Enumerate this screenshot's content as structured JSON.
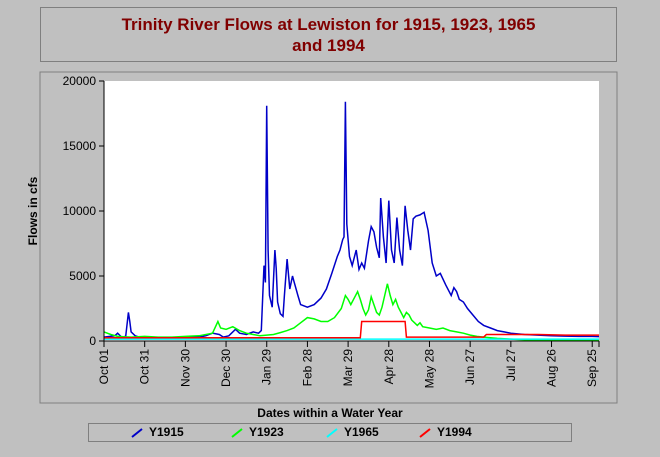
{
  "chart_data": {
    "type": "line",
    "title_line1": "Trinity River Flows at Lewiston for 1915, 1923, 1965",
    "title_line2": "and 1994",
    "xlabel": "Dates within a Water Year",
    "ylabel": "Flows in cfs",
    "ylim": [
      0,
      20000
    ],
    "yticks": [
      0,
      5000,
      10000,
      15000,
      20000
    ],
    "xlim": [
      0,
      365
    ],
    "xticks": [
      {
        "day": 0,
        "label": "Oct 01"
      },
      {
        "day": 30,
        "label": "Oct 31"
      },
      {
        "day": 60,
        "label": "Nov 30"
      },
      {
        "day": 90,
        "label": "Dec 30"
      },
      {
        "day": 120,
        "label": "Jan 29"
      },
      {
        "day": 150,
        "label": "Feb 28"
      },
      {
        "day": 180,
        "label": "Mar 29"
      },
      {
        "day": 210,
        "label": "Apr 28"
      },
      {
        "day": 240,
        "label": "May 28"
      },
      {
        "day": 270,
        "label": "Jun 27"
      },
      {
        "day": 300,
        "label": "Jul 27"
      },
      {
        "day": 330,
        "label": "Aug 26"
      },
      {
        "day": 360,
        "label": "Sep 25"
      }
    ],
    "grid": false,
    "legend_position": "bottom",
    "series": [
      {
        "name": "Y1915",
        "color": "#0000c8",
        "points": [
          [
            0,
            300
          ],
          [
            8,
            400
          ],
          [
            10,
            600
          ],
          [
            13,
            300
          ],
          [
            16,
            350
          ],
          [
            18,
            2200
          ],
          [
            19,
            1500
          ],
          [
            20,
            700
          ],
          [
            23,
            400
          ],
          [
            26,
            300
          ],
          [
            30,
            250
          ],
          [
            33,
            250
          ],
          [
            40,
            200
          ],
          [
            50,
            250
          ],
          [
            60,
            300
          ],
          [
            70,
            300
          ],
          [
            75,
            400
          ],
          [
            80,
            600
          ],
          [
            85,
            500
          ],
          [
            88,
            300
          ],
          [
            92,
            400
          ],
          [
            97,
            900
          ],
          [
            100,
            600
          ],
          [
            105,
            500
          ],
          [
            110,
            700
          ],
          [
            114,
            600
          ],
          [
            116,
            800
          ],
          [
            118,
            5800
          ],
          [
            119,
            4500
          ],
          [
            120,
            18100
          ],
          [
            121,
            7000
          ],
          [
            122,
            3500
          ],
          [
            124,
            2600
          ],
          [
            126,
            7000
          ],
          [
            127,
            5600
          ],
          [
            128,
            3000
          ],
          [
            130,
            2100
          ],
          [
            132,
            1900
          ],
          [
            133,
            3500
          ],
          [
            135,
            6300
          ],
          [
            137,
            4000
          ],
          [
            139,
            5000
          ],
          [
            140,
            4600
          ],
          [
            143,
            3500
          ],
          [
            145,
            2800
          ],
          [
            150,
            2600
          ],
          [
            155,
            2800
          ],
          [
            160,
            3300
          ],
          [
            164,
            4000
          ],
          [
            168,
            5200
          ],
          [
            172,
            6500
          ],
          [
            174,
            7000
          ],
          [
            176,
            7800
          ],
          [
            177,
            8000
          ],
          [
            178,
            18400
          ],
          [
            179,
            9000
          ],
          [
            181,
            6500
          ],
          [
            183,
            5800
          ],
          [
            186,
            7000
          ],
          [
            188,
            5500
          ],
          [
            190,
            6000
          ],
          [
            192,
            5600
          ],
          [
            195,
            7700
          ],
          [
            197,
            8800
          ],
          [
            199,
            8400
          ],
          [
            201,
            7200
          ],
          [
            203,
            6400
          ],
          [
            204,
            11000
          ],
          [
            206,
            8000
          ],
          [
            208,
            6000
          ],
          [
            210,
            10800
          ],
          [
            212,
            7000
          ],
          [
            214,
            6000
          ],
          [
            216,
            9500
          ],
          [
            218,
            7000
          ],
          [
            220,
            5800
          ],
          [
            222,
            10400
          ],
          [
            224,
            8500
          ],
          [
            226,
            7000
          ],
          [
            228,
            9400
          ],
          [
            230,
            9600
          ],
          [
            233,
            9700
          ],
          [
            236,
            9900
          ],
          [
            239,
            8500
          ],
          [
            242,
            6000
          ],
          [
            245,
            5000
          ],
          [
            248,
            5200
          ],
          [
            252,
            4300
          ],
          [
            256,
            3500
          ],
          [
            258,
            4100
          ],
          [
            260,
            3800
          ],
          [
            262,
            3200
          ],
          [
            265,
            3000
          ],
          [
            268,
            2500
          ],
          [
            272,
            2000
          ],
          [
            276,
            1500
          ],
          [
            280,
            1200
          ],
          [
            285,
            1000
          ],
          [
            290,
            800
          ],
          [
            295,
            700
          ],
          [
            300,
            600
          ],
          [
            310,
            500
          ],
          [
            320,
            450
          ],
          [
            330,
            400
          ],
          [
            340,
            380
          ],
          [
            350,
            350
          ],
          [
            360,
            350
          ],
          [
            365,
            340
          ]
        ]
      },
      {
        "name": "Y1923",
        "color": "#00ff00",
        "points": [
          [
            0,
            700
          ],
          [
            5,
            500
          ],
          [
            10,
            350
          ],
          [
            20,
            300
          ],
          [
            30,
            350
          ],
          [
            40,
            300
          ],
          [
            50,
            300
          ],
          [
            60,
            350
          ],
          [
            70,
            400
          ],
          [
            80,
            600
          ],
          [
            84,
            1500
          ],
          [
            86,
            1000
          ],
          [
            90,
            900
          ],
          [
            95,
            1100
          ],
          [
            100,
            800
          ],
          [
            105,
            600
          ],
          [
            110,
            500
          ],
          [
            115,
            400
          ],
          [
            120,
            450
          ],
          [
            125,
            500
          ],
          [
            130,
            650
          ],
          [
            135,
            800
          ],
          [
            140,
            1000
          ],
          [
            145,
            1400
          ],
          [
            150,
            1800
          ],
          [
            155,
            1700
          ],
          [
            160,
            1500
          ],
          [
            165,
            1500
          ],
          [
            170,
            1800
          ],
          [
            175,
            2500
          ],
          [
            178,
            3500
          ],
          [
            180,
            3200
          ],
          [
            182,
            2800
          ],
          [
            185,
            3400
          ],
          [
            187,
            3800
          ],
          [
            189,
            3200
          ],
          [
            191,
            2500
          ],
          [
            193,
            2000
          ],
          [
            195,
            2400
          ],
          [
            197,
            3400
          ],
          [
            199,
            2800
          ],
          [
            201,
            2200
          ],
          [
            203,
            2000
          ],
          [
            205,
            2600
          ],
          [
            207,
            3500
          ],
          [
            209,
            4400
          ],
          [
            211,
            3500
          ],
          [
            213,
            2800
          ],
          [
            215,
            3200
          ],
          [
            217,
            2600
          ],
          [
            219,
            2200
          ],
          [
            221,
            1800
          ],
          [
            223,
            2200
          ],
          [
            225,
            2000
          ],
          [
            227,
            1600
          ],
          [
            229,
            1400
          ],
          [
            231,
            1200
          ],
          [
            233,
            1400
          ],
          [
            235,
            1100
          ],
          [
            240,
            1000
          ],
          [
            245,
            900
          ],
          [
            250,
            1000
          ],
          [
            255,
            800
          ],
          [
            260,
            700
          ],
          [
            265,
            600
          ],
          [
            270,
            450
          ],
          [
            275,
            350
          ],
          [
            280,
            300
          ],
          [
            290,
            200
          ],
          [
            300,
            150
          ],
          [
            310,
            100
          ],
          [
            320,
            80
          ],
          [
            330,
            70
          ],
          [
            340,
            60
          ],
          [
            350,
            50
          ],
          [
            360,
            50
          ],
          [
            365,
            50
          ]
        ]
      },
      {
        "name": "Y1965",
        "color": "#00ffff",
        "points": [
          [
            0,
            150
          ],
          [
            20,
            150
          ],
          [
            40,
            150
          ],
          [
            60,
            150
          ],
          [
            80,
            150
          ],
          [
            100,
            150
          ],
          [
            120,
            150
          ],
          [
            140,
            150
          ],
          [
            160,
            150
          ],
          [
            180,
            150
          ],
          [
            200,
            150
          ],
          [
            220,
            150
          ],
          [
            240,
            150
          ],
          [
            260,
            150
          ],
          [
            280,
            150
          ],
          [
            300,
            150
          ],
          [
            320,
            150
          ],
          [
            340,
            150
          ],
          [
            365,
            150
          ]
        ]
      },
      {
        "name": "Y1994",
        "color": "#ff0000",
        "points": [
          [
            0,
            250
          ],
          [
            30,
            250
          ],
          [
            60,
            250
          ],
          [
            90,
            250
          ],
          [
            120,
            250
          ],
          [
            150,
            250
          ],
          [
            180,
            250
          ],
          [
            189,
            250
          ],
          [
            190,
            1500
          ],
          [
            222,
            1500
          ],
          [
            223,
            300
          ],
          [
            250,
            300
          ],
          [
            280,
            300
          ],
          [
            282,
            500
          ],
          [
            300,
            500
          ],
          [
            320,
            500
          ],
          [
            340,
            450
          ],
          [
            365,
            450
          ]
        ]
      }
    ]
  }
}
